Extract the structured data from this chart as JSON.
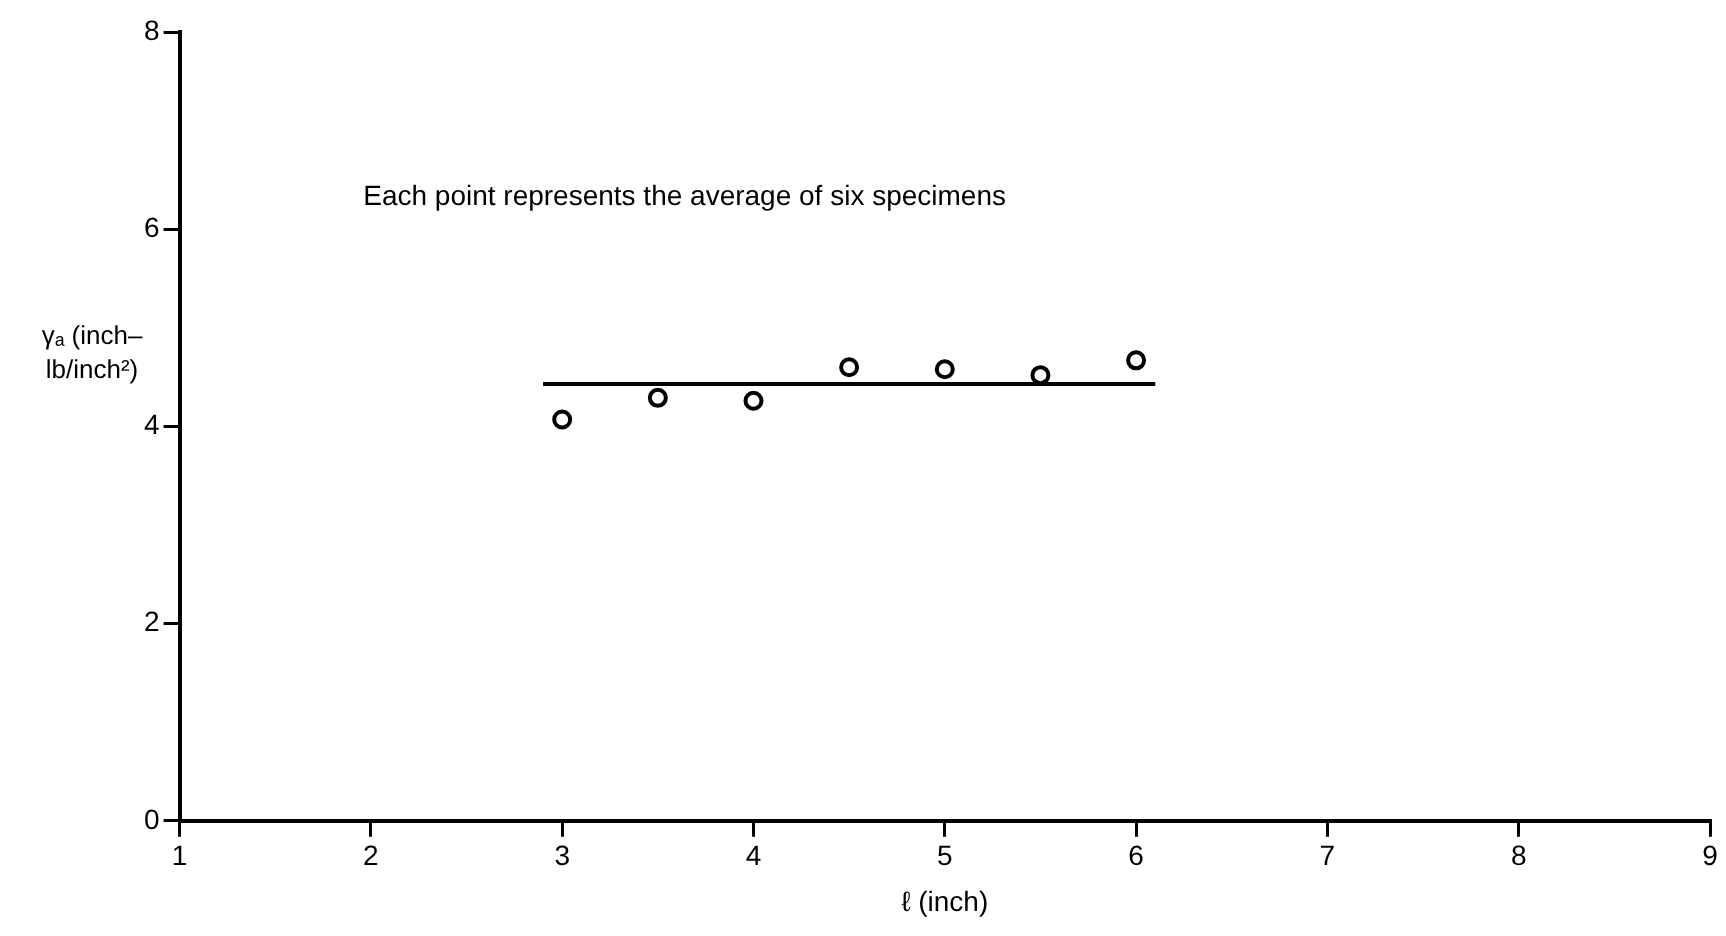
{
  "chart_data": {
    "type": "scatter",
    "xlabel": "ℓ (inch)",
    "ylabel": "γₐ (inch–lb/inch²)",
    "annotations": [
      "Each point represents the average of six specimens"
    ],
    "xlim": [
      1,
      9
    ],
    "xticks": [
      1,
      2,
      3,
      4,
      5,
      6,
      7,
      8,
      9
    ],
    "ylim": [
      0,
      8
    ],
    "yticks": [
      0,
      2,
      4,
      6,
      8
    ],
    "grid": false,
    "legend": false,
    "marker": "circle",
    "series": [
      {
        "type": "scatter",
        "color": "#000000",
        "x": [
          3,
          3.5,
          4,
          4.5,
          5,
          5.5,
          6
        ],
        "values": [
          4.07,
          4.29,
          4.26,
          4.6,
          4.58,
          4.52,
          4.67
        ]
      },
      {
        "type": "line",
        "color": "#000000",
        "marker": "none",
        "x": [
          2.9,
          6.1
        ],
        "values": [
          4.43,
          4.43
        ]
      }
    ]
  }
}
